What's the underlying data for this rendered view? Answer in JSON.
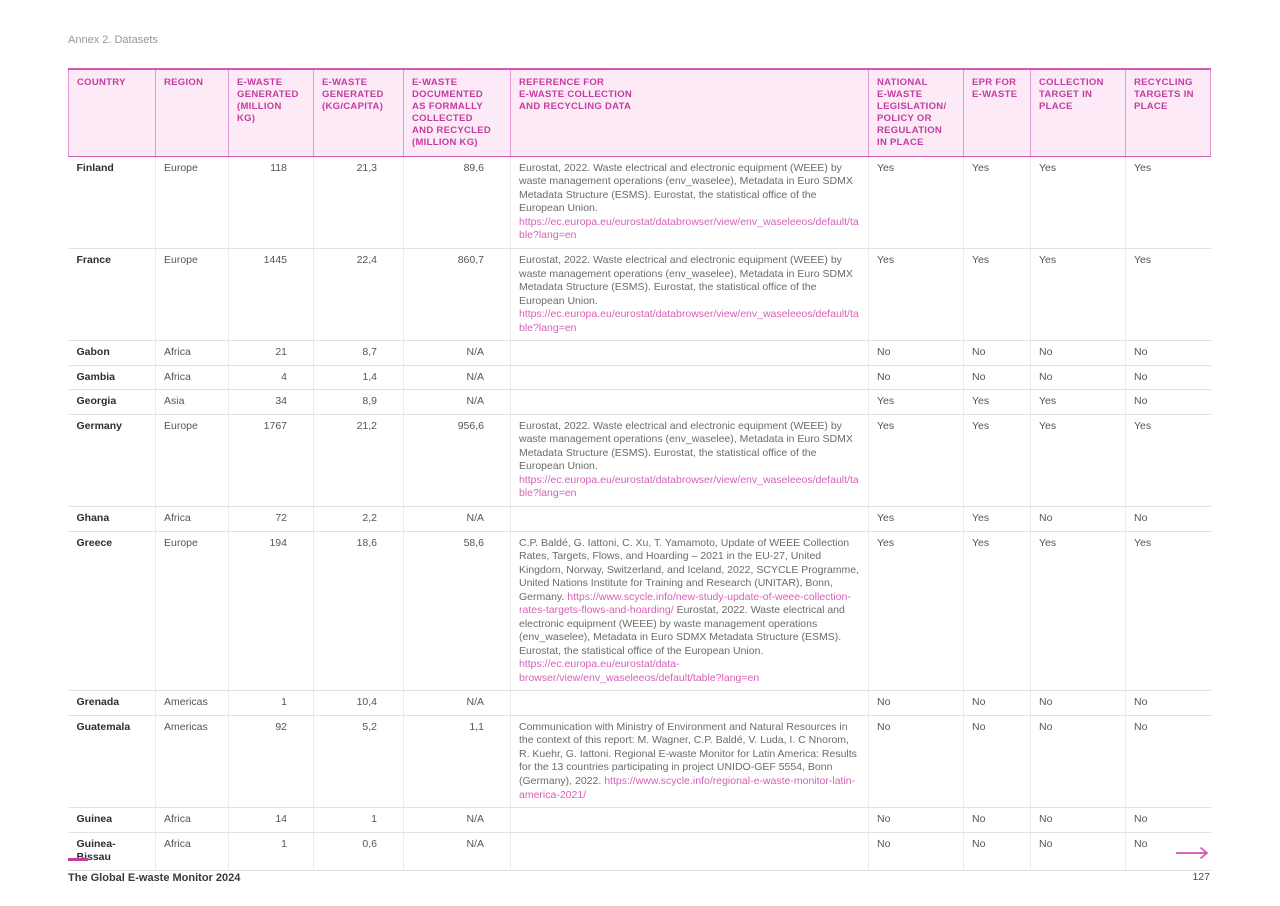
{
  "page": {
    "annex_label": "Annex 2. Datasets",
    "footer_left": "The Global E-waste Monitor 2024",
    "page_number": "127"
  },
  "colors": {
    "accent": "#c33c9f",
    "link": "#d760b8",
    "header_bg": "#fcebf6"
  },
  "table": {
    "columns": [
      {
        "key": "country",
        "label": "COUNTRY"
      },
      {
        "key": "region",
        "label": "REGION"
      },
      {
        "key": "generated_million_kg",
        "label": "E-WASTE\nGENERATED\n(MILLION\nKG)",
        "align": "right"
      },
      {
        "key": "generated_kg_per_capita",
        "label": "E-WASTE\nGENERATED\n(KG/CAPITA)",
        "align": "right"
      },
      {
        "key": "documented_collected_million_kg",
        "label": "E-WASTE\nDOCUMENTED\nAS FORMALLY\nCOLLECTED\nAND RECYCLED\n(MILLION KG)",
        "align": "right"
      },
      {
        "key": "reference",
        "label": "REFERENCE FOR\nE-WASTE COLLECTION\nAND RECYCLING DATA"
      },
      {
        "key": "national_legislation",
        "label": "NATIONAL\nE-WASTE\nLEGISLATION/\nPOLICY OR\nREGULATION\nIN PLACE"
      },
      {
        "key": "epr",
        "label": "EPR FOR\nE-WASTE"
      },
      {
        "key": "collection_target",
        "label": "COLLECTION\nTARGET IN\nPLACE"
      },
      {
        "key": "recycling_targets",
        "label": "RECYCLING\nTARGETS IN\nPLACE"
      }
    ],
    "rows": [
      {
        "country": "Finland",
        "region": "Europe",
        "generated_million_kg": "118",
        "generated_kg_per_capita": "21,3",
        "documented_collected_million_kg": "89,6",
        "reference": [
          {
            "text": "Eurostat, 2022. Waste electrical and electronic equipment (WEEE) by waste management operations (env_waselee), Metadata in Euro SDMX Metadata Structure (ESMS). Eurostat, the statistical office of the European Union. ",
            "link": false
          },
          {
            "text": "https://ec.europa.eu/eurostat/databrowser/view/env_waseleeos/default/table?lang=en",
            "link": true
          }
        ],
        "national_legislation": "Yes",
        "epr": "Yes",
        "collection_target": "Yes",
        "recycling_targets": "Yes"
      },
      {
        "country": "France",
        "region": "Europe",
        "generated_million_kg": "1445",
        "generated_kg_per_capita": "22,4",
        "documented_collected_million_kg": "860,7",
        "reference": [
          {
            "text": "Eurostat, 2022. Waste electrical and electronic equipment (WEEE) by waste management operations (env_waselee), Metadata in Euro SDMX Metadata Structure (ESMS). Eurostat, the statistical office of the European Union. ",
            "link": false
          },
          {
            "text": "https://ec.europa.eu/eurostat/databrowser/view/env_waseleeos/default/table?lang=en",
            "link": true
          }
        ],
        "national_legislation": "Yes",
        "epr": "Yes",
        "collection_target": "Yes",
        "recycling_targets": "Yes"
      },
      {
        "country": "Gabon",
        "region": "Africa",
        "generated_million_kg": "21",
        "generated_kg_per_capita": "8,7",
        "documented_collected_million_kg": "N/A",
        "reference": [],
        "national_legislation": "No",
        "epr": "No",
        "collection_target": "No",
        "recycling_targets": "No"
      },
      {
        "country": "Gambia",
        "region": "Africa",
        "generated_million_kg": "4",
        "generated_kg_per_capita": "1,4",
        "documented_collected_million_kg": "N/A",
        "reference": [],
        "national_legislation": "No",
        "epr": "No",
        "collection_target": "No",
        "recycling_targets": "No"
      },
      {
        "country": "Georgia",
        "region": "Asia",
        "generated_million_kg": "34",
        "generated_kg_per_capita": "8,9",
        "documented_collected_million_kg": "N/A",
        "reference": [],
        "national_legislation": "Yes",
        "epr": "Yes",
        "collection_target": "Yes",
        "recycling_targets": "No"
      },
      {
        "country": "Germany",
        "region": "Europe",
        "generated_million_kg": "1767",
        "generated_kg_per_capita": "21,2",
        "documented_collected_million_kg": "956,6",
        "reference": [
          {
            "text": "Eurostat, 2022. Waste electrical and electronic equipment (WEEE) by waste management operations (env_waselee), Metadata in Euro SDMX Metadata Structure (ESMS). Eurostat, the statistical office of the European Union. ",
            "link": false
          },
          {
            "text": "https://ec.europa.eu/eurostat/databrowser/view/env_waseleeos/default/table?lang=en",
            "link": true
          }
        ],
        "national_legislation": "Yes",
        "epr": "Yes",
        "collection_target": "Yes",
        "recycling_targets": "Yes"
      },
      {
        "country": "Ghana",
        "region": "Africa",
        "generated_million_kg": "72",
        "generated_kg_per_capita": "2,2",
        "documented_collected_million_kg": "N/A",
        "reference": [],
        "national_legislation": "Yes",
        "epr": "Yes",
        "collection_target": "No",
        "recycling_targets": "No"
      },
      {
        "country": "Greece",
        "region": "Europe",
        "generated_million_kg": "194",
        "generated_kg_per_capita": "18,6",
        "documented_collected_million_kg": "58,6",
        "reference": [
          {
            "text": "C.P. Baldé, G. Iattoni, C. Xu, T. Yamamoto, Update of WEEE Collection Rates, Targets, Flows, and Hoarding – 2021 in the EU-27, United Kingdom, Norway, Switzerland, and Iceland, 2022, SCYCLE Programme, United Nations Institute for Training and Research (UNITAR), Bonn, Germany. ",
            "link": false
          },
          {
            "text": "https://www.scycle.info/new-study-update-of-weee-collection-rates-targets-flows-and-hoarding/ ",
            "link": true
          },
          {
            "text": "Eurostat, 2022. Waste electrical and electronic equipment (WEEE) by waste management operations (env_waselee), Metadata in Euro SDMX Metadata Structure (ESMS). Eurostat, the statistical office of the European Union. ",
            "link": false
          },
          {
            "text": "https://ec.europa.eu/eurostat/data-browser/view/env_waseleeos/default/table?lang=en",
            "link": true
          }
        ],
        "national_legislation": "Yes",
        "epr": "Yes",
        "collection_target": "Yes",
        "recycling_targets": "Yes"
      },
      {
        "country": "Grenada",
        "region": "Americas",
        "generated_million_kg": "1",
        "generated_kg_per_capita": "10,4",
        "documented_collected_million_kg": "N/A",
        "reference": [],
        "national_legislation": "No",
        "epr": "No",
        "collection_target": "No",
        "recycling_targets": "No"
      },
      {
        "country": "Guatemala",
        "region": "Americas",
        "generated_million_kg": "92",
        "generated_kg_per_capita": "5,2",
        "documented_collected_million_kg": "1,1",
        "reference": [
          {
            "text": "Communication with Ministry of Environment and Natural Resources in the context of this report: M. Wagner, C.P. Baldé, V. Luda, I. C Nnorom, R. Kuehr, G. Iattoni. Regional E-waste Monitor for Latin America: Results for the 13 countries participating in project UNIDO-GEF 5554, Bonn (Germany), 2022. ",
            "link": false
          },
          {
            "text": "https://www.scycle.info/regional-e-waste-monitor-latin-america-2021/",
            "link": true
          }
        ],
        "national_legislation": "No",
        "epr": "No",
        "collection_target": "No",
        "recycling_targets": "No"
      },
      {
        "country": "Guinea",
        "region": "Africa",
        "generated_million_kg": "14",
        "generated_kg_per_capita": "1",
        "documented_collected_million_kg": "N/A",
        "reference": [],
        "national_legislation": "No",
        "epr": "No",
        "collection_target": "No",
        "recycling_targets": "No"
      },
      {
        "country": "Guinea-Bissau",
        "region": "Africa",
        "generated_million_kg": "1",
        "generated_kg_per_capita": "0,6",
        "documented_collected_million_kg": "N/A",
        "reference": [],
        "national_legislation": "No",
        "epr": "No",
        "collection_target": "No",
        "recycling_targets": "No"
      }
    ]
  }
}
